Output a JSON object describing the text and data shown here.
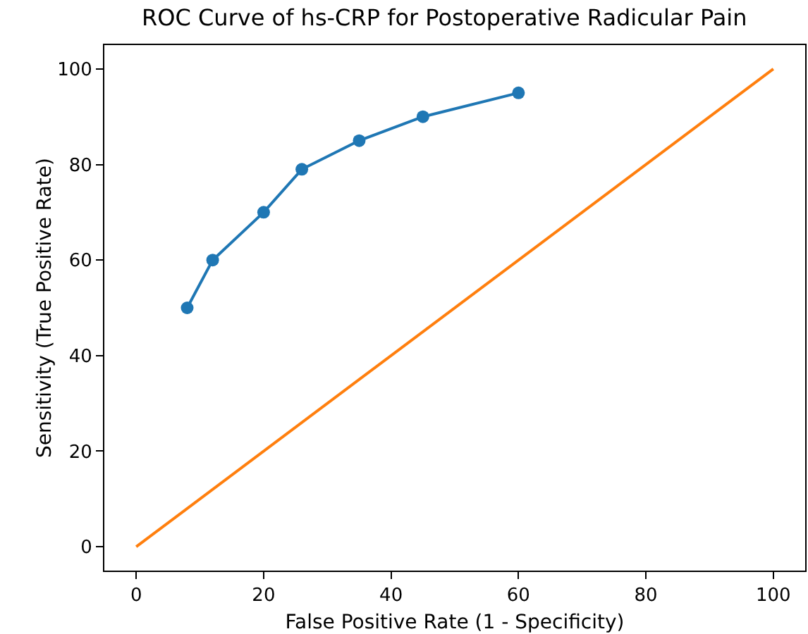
{
  "chart_data": {
    "type": "line",
    "title": "ROC Curve of hs-CRP for Postoperative Radicular Pain",
    "xlabel": "False Positive Rate (1 - Specificity)",
    "ylabel": "Sensitivity (True Positive Rate)",
    "xlim": [
      -5,
      105
    ],
    "ylim": [
      -5,
      105
    ],
    "xticks": [
      0,
      20,
      40,
      60,
      80,
      100
    ],
    "yticks": [
      0,
      20,
      40,
      60,
      80,
      100
    ],
    "grid": false,
    "series": [
      {
        "color": "#1f77b4",
        "marker": "circle",
        "x": [
          8,
          12,
          20,
          26,
          35,
          45,
          60
        ],
        "values": [
          50,
          60,
          70,
          79,
          85,
          90,
          95
        ]
      },
      {
        "color": "#ff7f0e",
        "marker": "none",
        "x": [
          0,
          100
        ],
        "values": [
          0,
          100
        ]
      }
    ]
  }
}
